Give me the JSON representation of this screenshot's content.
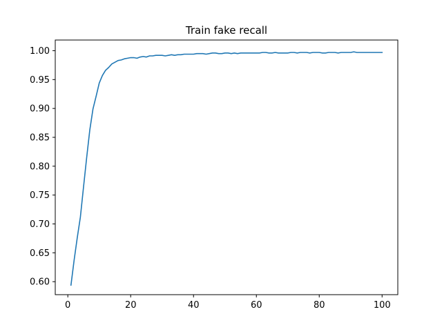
{
  "chart_data": {
    "type": "line",
    "title": "Train fake recall",
    "xlabel": "",
    "ylabel": "",
    "xlim": [
      -4,
      105
    ],
    "ylim": [
      0.5775,
      1.0185
    ],
    "xticks": [
      0,
      20,
      40,
      60,
      80,
      100
    ],
    "yticks": [
      0.6,
      0.65,
      0.7,
      0.75,
      0.8,
      0.85,
      0.9,
      0.95,
      1.0
    ],
    "grid": false,
    "legend": "none",
    "series": [
      {
        "color": "#1f77b4",
        "x": [
          1,
          2,
          3,
          4,
          5,
          6,
          7,
          8,
          9,
          10,
          11,
          12,
          13,
          14,
          15,
          16,
          17,
          18,
          19,
          20,
          21,
          22,
          23,
          24,
          25,
          26,
          27,
          28,
          29,
          30,
          31,
          32,
          33,
          34,
          35,
          36,
          37,
          38,
          39,
          40,
          41,
          42,
          43,
          44,
          45,
          46,
          47,
          48,
          49,
          50,
          51,
          52,
          53,
          54,
          55,
          56,
          57,
          58,
          59,
          60,
          61,
          62,
          63,
          64,
          65,
          66,
          67,
          68,
          69,
          70,
          71,
          72,
          73,
          74,
          75,
          76,
          77,
          78,
          79,
          80,
          81,
          82,
          83,
          84,
          85,
          86,
          87,
          88,
          89,
          90,
          91,
          92,
          93,
          94,
          95,
          96,
          97,
          98,
          99,
          100
        ],
        "values": [
          0.594,
          0.637,
          0.676,
          0.712,
          0.764,
          0.815,
          0.863,
          0.899,
          0.921,
          0.944,
          0.957,
          0.966,
          0.971,
          0.977,
          0.98,
          0.983,
          0.984,
          0.986,
          0.987,
          0.988,
          0.988,
          0.987,
          0.989,
          0.99,
          0.989,
          0.991,
          0.991,
          0.992,
          0.992,
          0.992,
          0.991,
          0.992,
          0.993,
          0.992,
          0.993,
          0.993,
          0.994,
          0.994,
          0.994,
          0.994,
          0.995,
          0.995,
          0.995,
          0.994,
          0.995,
          0.996,
          0.996,
          0.995,
          0.995,
          0.996,
          0.996,
          0.995,
          0.996,
          0.995,
          0.996,
          0.996,
          0.996,
          0.996,
          0.996,
          0.996,
          0.996,
          0.997,
          0.997,
          0.996,
          0.996,
          0.997,
          0.996,
          0.996,
          0.996,
          0.996,
          0.997,
          0.997,
          0.996,
          0.997,
          0.997,
          0.997,
          0.996,
          0.997,
          0.997,
          0.997,
          0.996,
          0.996,
          0.997,
          0.997,
          0.997,
          0.996,
          0.997,
          0.997,
          0.997,
          0.997,
          0.998,
          0.997,
          0.997,
          0.997,
          0.997,
          0.997,
          0.997,
          0.997,
          0.997,
          0.997
        ]
      }
    ]
  }
}
